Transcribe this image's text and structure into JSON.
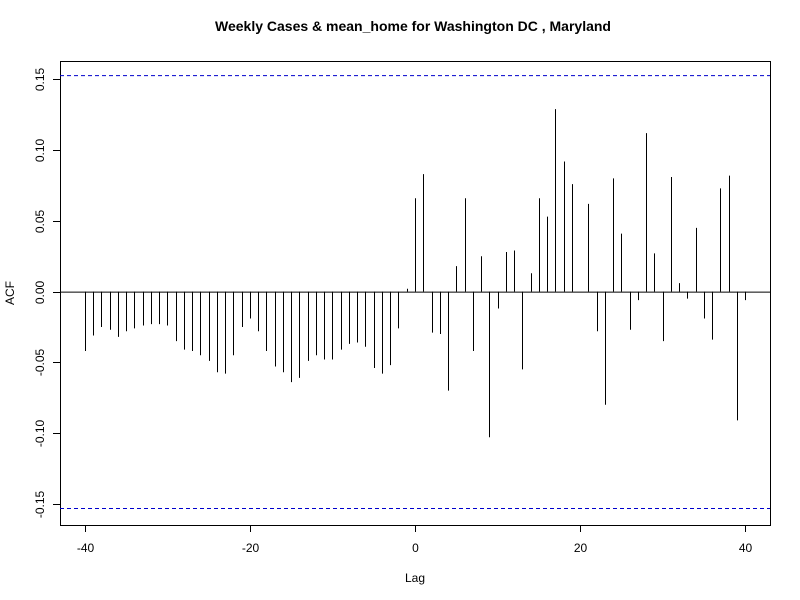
{
  "chart_data": {
    "type": "bar",
    "title": "Weekly Cases & mean_home for Washington DC , Maryland",
    "xlabel": "Lag",
    "ylabel": "ACF",
    "xlim": [
      -43,
      43
    ],
    "ylim": [
      -0.165,
      0.163
    ],
    "xticks": [
      -40,
      -20,
      0,
      20,
      40
    ],
    "xtick_labels": [
      "-40",
      "-20",
      "0",
      "20",
      "40"
    ],
    "yticks": [
      -0.15,
      -0.1,
      -0.05,
      0.0,
      0.05,
      0.1,
      0.15
    ],
    "ytick_labels": [
      "-0.15",
      "-0.10",
      "-0.05",
      "0.00",
      "0.05",
      "0.10",
      "0.15"
    ],
    "confidence_bounds": [
      0.153,
      -0.153
    ],
    "bound_color": "#0000cc",
    "bar_color": "#000000",
    "grid": false,
    "lags": [
      -40,
      -39,
      -38,
      -37,
      -36,
      -35,
      -34,
      -33,
      -32,
      -31,
      -30,
      -29,
      -28,
      -27,
      -26,
      -25,
      -24,
      -23,
      -22,
      -21,
      -20,
      -19,
      -18,
      -17,
      -16,
      -15,
      -14,
      -13,
      -12,
      -11,
      -10,
      -9,
      -8,
      -7,
      -6,
      -5,
      -4,
      -3,
      -2,
      -1,
      0,
      1,
      2,
      3,
      4,
      5,
      6,
      7,
      8,
      9,
      10,
      11,
      12,
      13,
      14,
      15,
      16,
      17,
      18,
      19,
      20,
      21,
      22,
      23,
      24,
      25,
      26,
      27,
      28,
      29,
      30,
      31,
      32,
      33,
      34,
      35,
      36,
      37,
      38,
      39,
      40
    ],
    "values": [
      -0.042,
      -0.031,
      -0.025,
      -0.027,
      -0.032,
      -0.028,
      -0.026,
      -0.024,
      -0.023,
      -0.023,
      -0.024,
      -0.035,
      -0.041,
      -0.042,
      -0.045,
      -0.049,
      -0.057,
      -0.058,
      -0.045,
      -0.025,
      -0.019,
      -0.028,
      -0.042,
      -0.053,
      -0.057,
      -0.064,
      -0.061,
      -0.049,
      -0.045,
      -0.048,
      -0.048,
      -0.041,
      -0.037,
      -0.036,
      -0.039,
      -0.054,
      -0.058,
      -0.052,
      -0.026,
      0.002,
      0.066,
      0.083,
      -0.029,
      -0.03,
      -0.07,
      0.018,
      0.066,
      -0.042,
      0.025,
      -0.103,
      -0.012,
      0.028,
      0.029,
      -0.055,
      0.013,
      0.066,
      0.053,
      0.129,
      0.092,
      0.076,
      0.0,
      0.062,
      -0.028,
      -0.08,
      0.08,
      0.041,
      -0.027,
      -0.006,
      0.112,
      0.027,
      -0.035,
      0.081,
      0.006,
      -0.005,
      0.045,
      -0.019,
      -0.034,
      0.073,
      0.082,
      -0.091,
      -0.006
    ]
  }
}
